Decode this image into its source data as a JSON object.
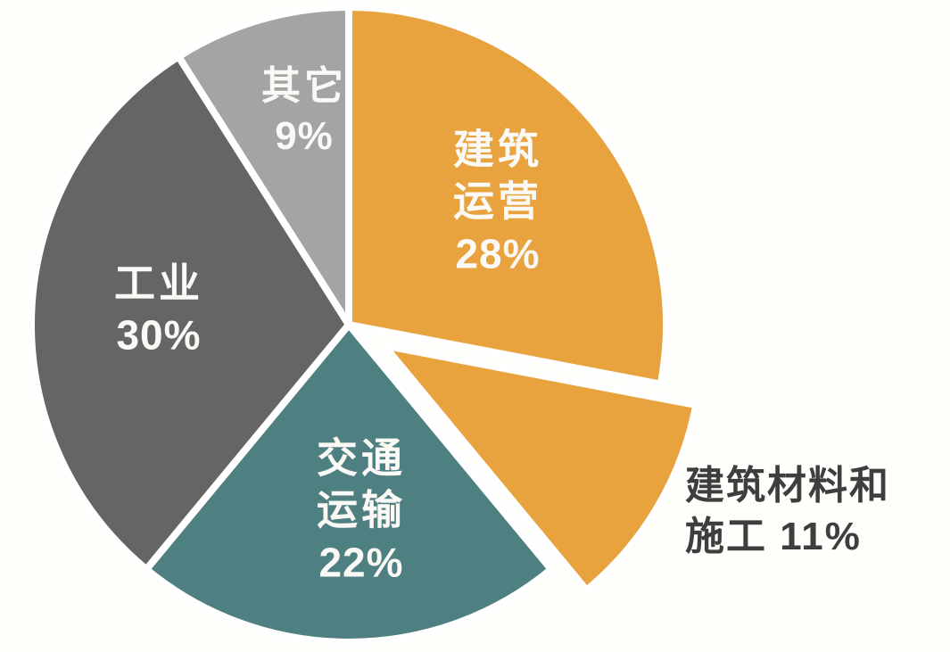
{
  "chart_data": {
    "type": "pie",
    "title": "",
    "unit": "%",
    "direction": "clockwise",
    "start_angle_deg": 0,
    "legend": "none",
    "background_color": "#FEFEFB",
    "separator_color": "#FFFFFF",
    "slices": [
      {
        "id": "building-operations",
        "label": "建筑运营",
        "value": 28,
        "percent_text": "28%",
        "color": "#E8A23E",
        "text_color": "#FAF9F5",
        "label_position": "inside",
        "exploded": false,
        "label_lines": [
          "建筑",
          "运营",
          "28%"
        ]
      },
      {
        "id": "building-materials-construction",
        "label": "建筑材料和施工",
        "value": 11,
        "percent_text": "11%",
        "color": "#E8A23E",
        "text_color": "#3E3E3E",
        "label_position": "outside-right",
        "exploded": true,
        "label_lines": [
          "建筑材料和",
          "施工 11%"
        ]
      },
      {
        "id": "transportation",
        "label": "交通运输",
        "value": 22,
        "percent_text": "22%",
        "color": "#4E7F81",
        "text_color": "#FAF9F5",
        "label_position": "inside",
        "exploded": false,
        "label_lines": [
          "交通",
          "运输",
          "22%"
        ]
      },
      {
        "id": "industry",
        "label": "工业",
        "value": 30,
        "percent_text": "30%",
        "color": "#666566",
        "text_color": "#FAF9F5",
        "label_position": "inside",
        "exploded": false,
        "label_lines": [
          "工业",
          "30%"
        ]
      },
      {
        "id": "others",
        "label": "其它",
        "value": 9,
        "percent_text": "9%",
        "color": "#A5A4A5",
        "text_color": "#FAF9F5",
        "label_position": "inside",
        "exploded": false,
        "label_lines": [
          "其它",
          "9%"
        ]
      }
    ]
  }
}
